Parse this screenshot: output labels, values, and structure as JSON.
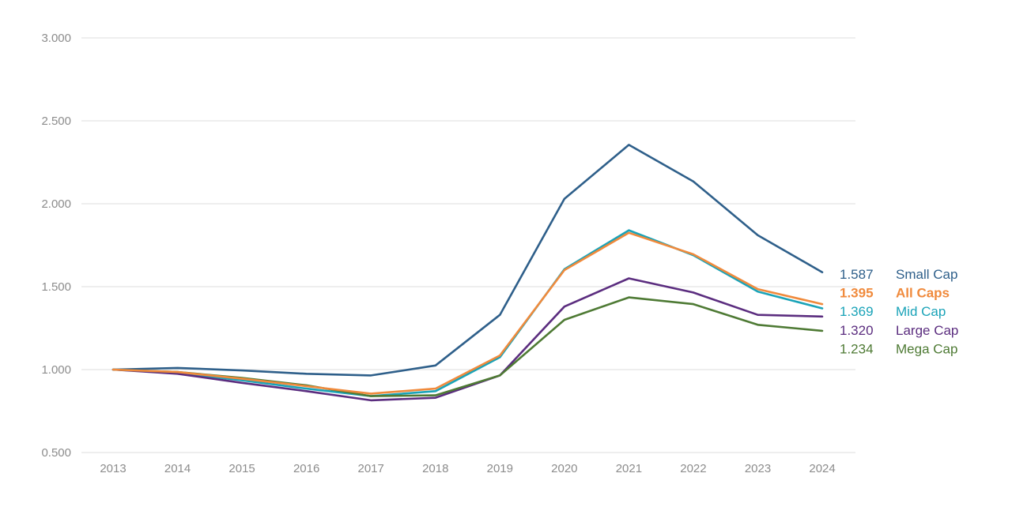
{
  "chart_data": {
    "type": "line",
    "x": [
      "2013",
      "2014",
      "2015",
      "2016",
      "2017",
      "2018",
      "2019",
      "2020",
      "2021",
      "2022",
      "2023",
      "2024"
    ],
    "ylim": [
      0.5,
      3.0
    ],
    "yticks": [
      "0.500",
      "1.000",
      "1.500",
      "2.000",
      "2.500",
      "3.000"
    ],
    "grid": true,
    "legend_placement": "right (end of lines)",
    "series": [
      {
        "name": "Small Cap",
        "end_label": "1.587",
        "color": "#2e5f8a",
        "bold": false,
        "values": [
          1.0,
          1.01,
          0.995,
          0.975,
          0.965,
          1.025,
          1.33,
          2.03,
          2.355,
          2.135,
          1.81,
          1.587
        ]
      },
      {
        "name": "Mid Cap",
        "end_label": "1.369",
        "color": "#1aa3b8",
        "bold": false,
        "values": [
          1.0,
          0.98,
          0.935,
          0.885,
          0.84,
          0.87,
          1.075,
          1.605,
          1.84,
          1.69,
          1.47,
          1.369
        ]
      },
      {
        "name": "Large Cap",
        "end_label": "1.320",
        "color": "#5b2d7f",
        "bold": false,
        "values": [
          1.0,
          0.975,
          0.92,
          0.87,
          0.815,
          0.83,
          0.965,
          1.38,
          1.55,
          1.465,
          1.33,
          1.32
        ]
      },
      {
        "name": "Mega Cap",
        "end_label": "1.234",
        "color": "#4e7a34",
        "bold": false,
        "values": [
          1.0,
          0.985,
          0.95,
          0.905,
          0.84,
          0.845,
          0.965,
          1.3,
          1.435,
          1.395,
          1.27,
          1.234
        ]
      },
      {
        "name": "All Caps",
        "end_label": "1.395",
        "color": "#f08a3c",
        "bold": true,
        "values": [
          1.0,
          0.985,
          0.945,
          0.9,
          0.855,
          0.885,
          1.085,
          1.6,
          1.825,
          1.695,
          1.485,
          1.395
        ]
      }
    ],
    "legend_order": [
      "Small Cap",
      "All Caps",
      "Mid Cap",
      "Large Cap",
      "Mega Cap"
    ]
  }
}
